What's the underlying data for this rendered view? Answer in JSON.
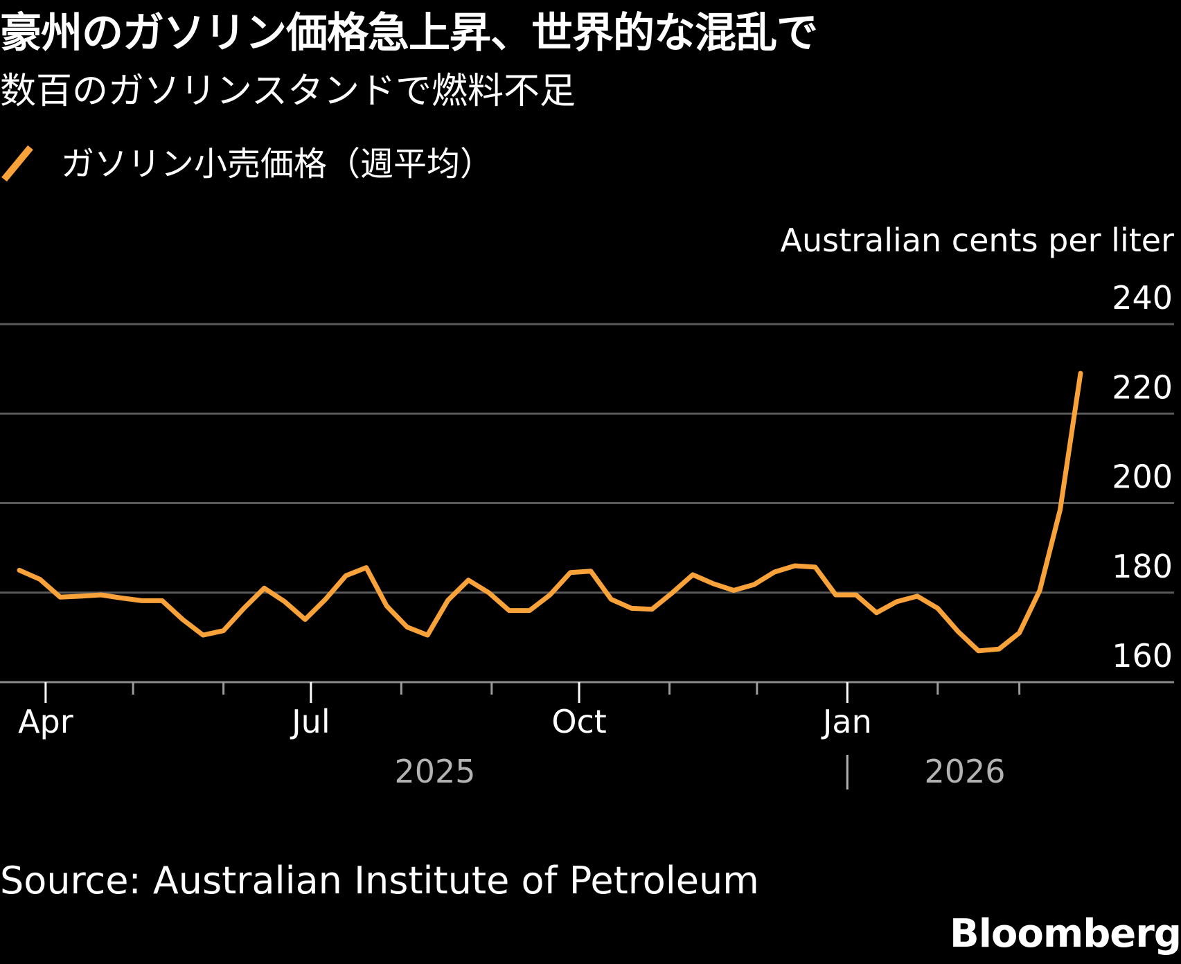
{
  "title": "豪州のガソリン価格急上昇、世界的な混乱で",
  "subtitle": "数百のガソリンスタンドで燃料不足",
  "legend": {
    "label": "ガソリン小売価格（週平均）"
  },
  "unit_label": "Australian cents per liter",
  "source": "Source: Australian Institute of Petroleum",
  "brand": "Bloomberg",
  "colors": {
    "background": "#000000",
    "line": "#F9A23A",
    "grid": "#5a5a5a",
    "text": "#ffffff",
    "year_text": "#b3b3b3"
  },
  "chart_data": {
    "type": "line",
    "title": "豪州のガソリン価格急上昇、世界的な混乱で",
    "subtitle": "数百のガソリンスタンドで燃料不足",
    "ylabel": "Australian cents per liter",
    "ylim": [
      160,
      240
    ],
    "yticks": [
      160,
      180,
      200,
      220,
      240
    ],
    "grid": true,
    "legend_position": "top-left",
    "x_tick_labels": [
      "Apr",
      "Jul",
      "Oct",
      "Jan"
    ],
    "year_labels": [
      "2025",
      "2026"
    ],
    "series": [
      {
        "name": "ガソリン小売価格（週平均）",
        "x": [
          "2025-03-23",
          "2025-03-30",
          "2025-04-06",
          "2025-04-13",
          "2025-04-20",
          "2025-04-27",
          "2025-05-04",
          "2025-05-11",
          "2025-05-18",
          "2025-05-25",
          "2025-06-01",
          "2025-06-08",
          "2025-06-15",
          "2025-06-22",
          "2025-06-29",
          "2025-07-06",
          "2025-07-13",
          "2025-07-20",
          "2025-07-27",
          "2025-08-03",
          "2025-08-10",
          "2025-08-17",
          "2025-08-24",
          "2025-08-31",
          "2025-09-07",
          "2025-09-14",
          "2025-09-21",
          "2025-09-28",
          "2025-10-05",
          "2025-10-12",
          "2025-10-19",
          "2025-10-26",
          "2025-11-02",
          "2025-11-09",
          "2025-11-16",
          "2025-11-23",
          "2025-11-30",
          "2025-12-07",
          "2025-12-14",
          "2025-12-21",
          "2025-12-28",
          "2026-01-04",
          "2026-01-11",
          "2026-01-18",
          "2026-01-25",
          "2026-02-01",
          "2026-02-08",
          "2026-02-15",
          "2026-02-22",
          "2026-03-01",
          "2026-03-08",
          "2026-03-15",
          "2026-03-22"
        ],
        "values": [
          185,
          183,
          179,
          179.2,
          179.5,
          178.8,
          178.2,
          178.2,
          174,
          170.5,
          171.5,
          176.5,
          181,
          178,
          174,
          178.5,
          183.8,
          185.6,
          177,
          172.3,
          170.5,
          178.3,
          182.8,
          180,
          176,
          176,
          179.5,
          184.5,
          184.8,
          178.5,
          176.5,
          176.3,
          180,
          184,
          182,
          180.5,
          181.8,
          184.6,
          186,
          185.7,
          179.5,
          179.5,
          175.5,
          178,
          179.2,
          176.5,
          171.3,
          167,
          167.4,
          171,
          180.5,
          198.5,
          229
        ]
      }
    ]
  }
}
